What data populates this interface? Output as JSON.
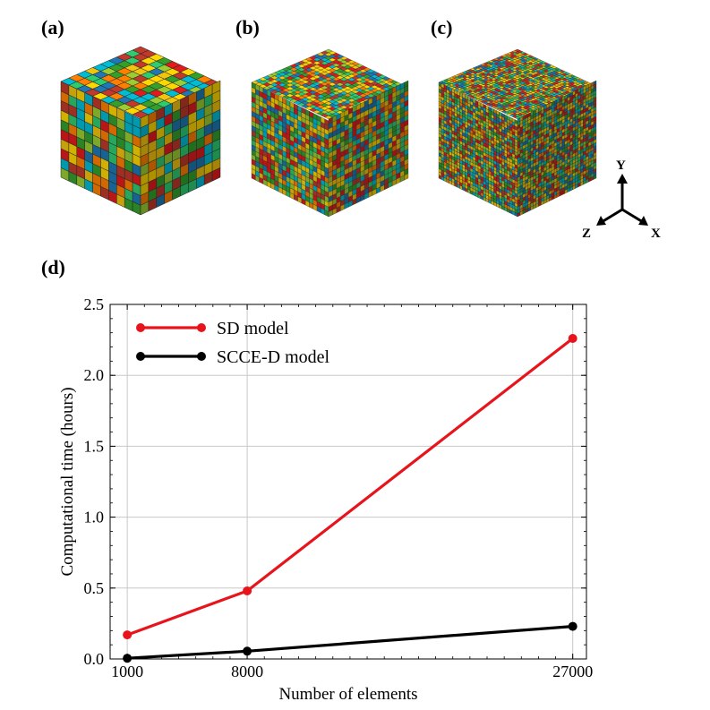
{
  "panels": {
    "a": "(a)",
    "b": "(b)",
    "c": "(c)",
    "d": "(d)"
  },
  "cubes": [
    {
      "name": "cube-a",
      "grid": 10
    },
    {
      "name": "cube-b",
      "grid": 20
    },
    {
      "name": "cube-c",
      "grid": 30
    }
  ],
  "triad": {
    "y": "Y",
    "z": "Z",
    "x": "X"
  },
  "palette": [
    "#e31a1c",
    "#1f78b4",
    "#33a02c",
    "#ff7f00",
    "#ffd700",
    "#9acd32",
    "#00bcd4",
    "#2ecc71",
    "#c0392b",
    "#f1c40f"
  ],
  "chart_data": {
    "type": "line",
    "xlabel": "Number of elements",
    "ylabel": "Computational time (hours)",
    "x": [
      1000,
      8000,
      27000
    ],
    "x_ticks": [
      "1000",
      "8000",
      "27000"
    ],
    "xlim": [
      0,
      27800
    ],
    "ylim": [
      0,
      2.5
    ],
    "y_ticks": [
      "0.0",
      "0.5",
      "1.0",
      "1.5",
      "2.0",
      "2.5"
    ],
    "grid": true,
    "legend_position": "top-left",
    "series": [
      {
        "name": "SD model",
        "color": "#e8141c",
        "values": [
          0.17,
          0.48,
          2.26
        ]
      },
      {
        "name": "SCCE-D model",
        "color": "#000000",
        "values": [
          0.005,
          0.055,
          0.23
        ]
      }
    ]
  }
}
